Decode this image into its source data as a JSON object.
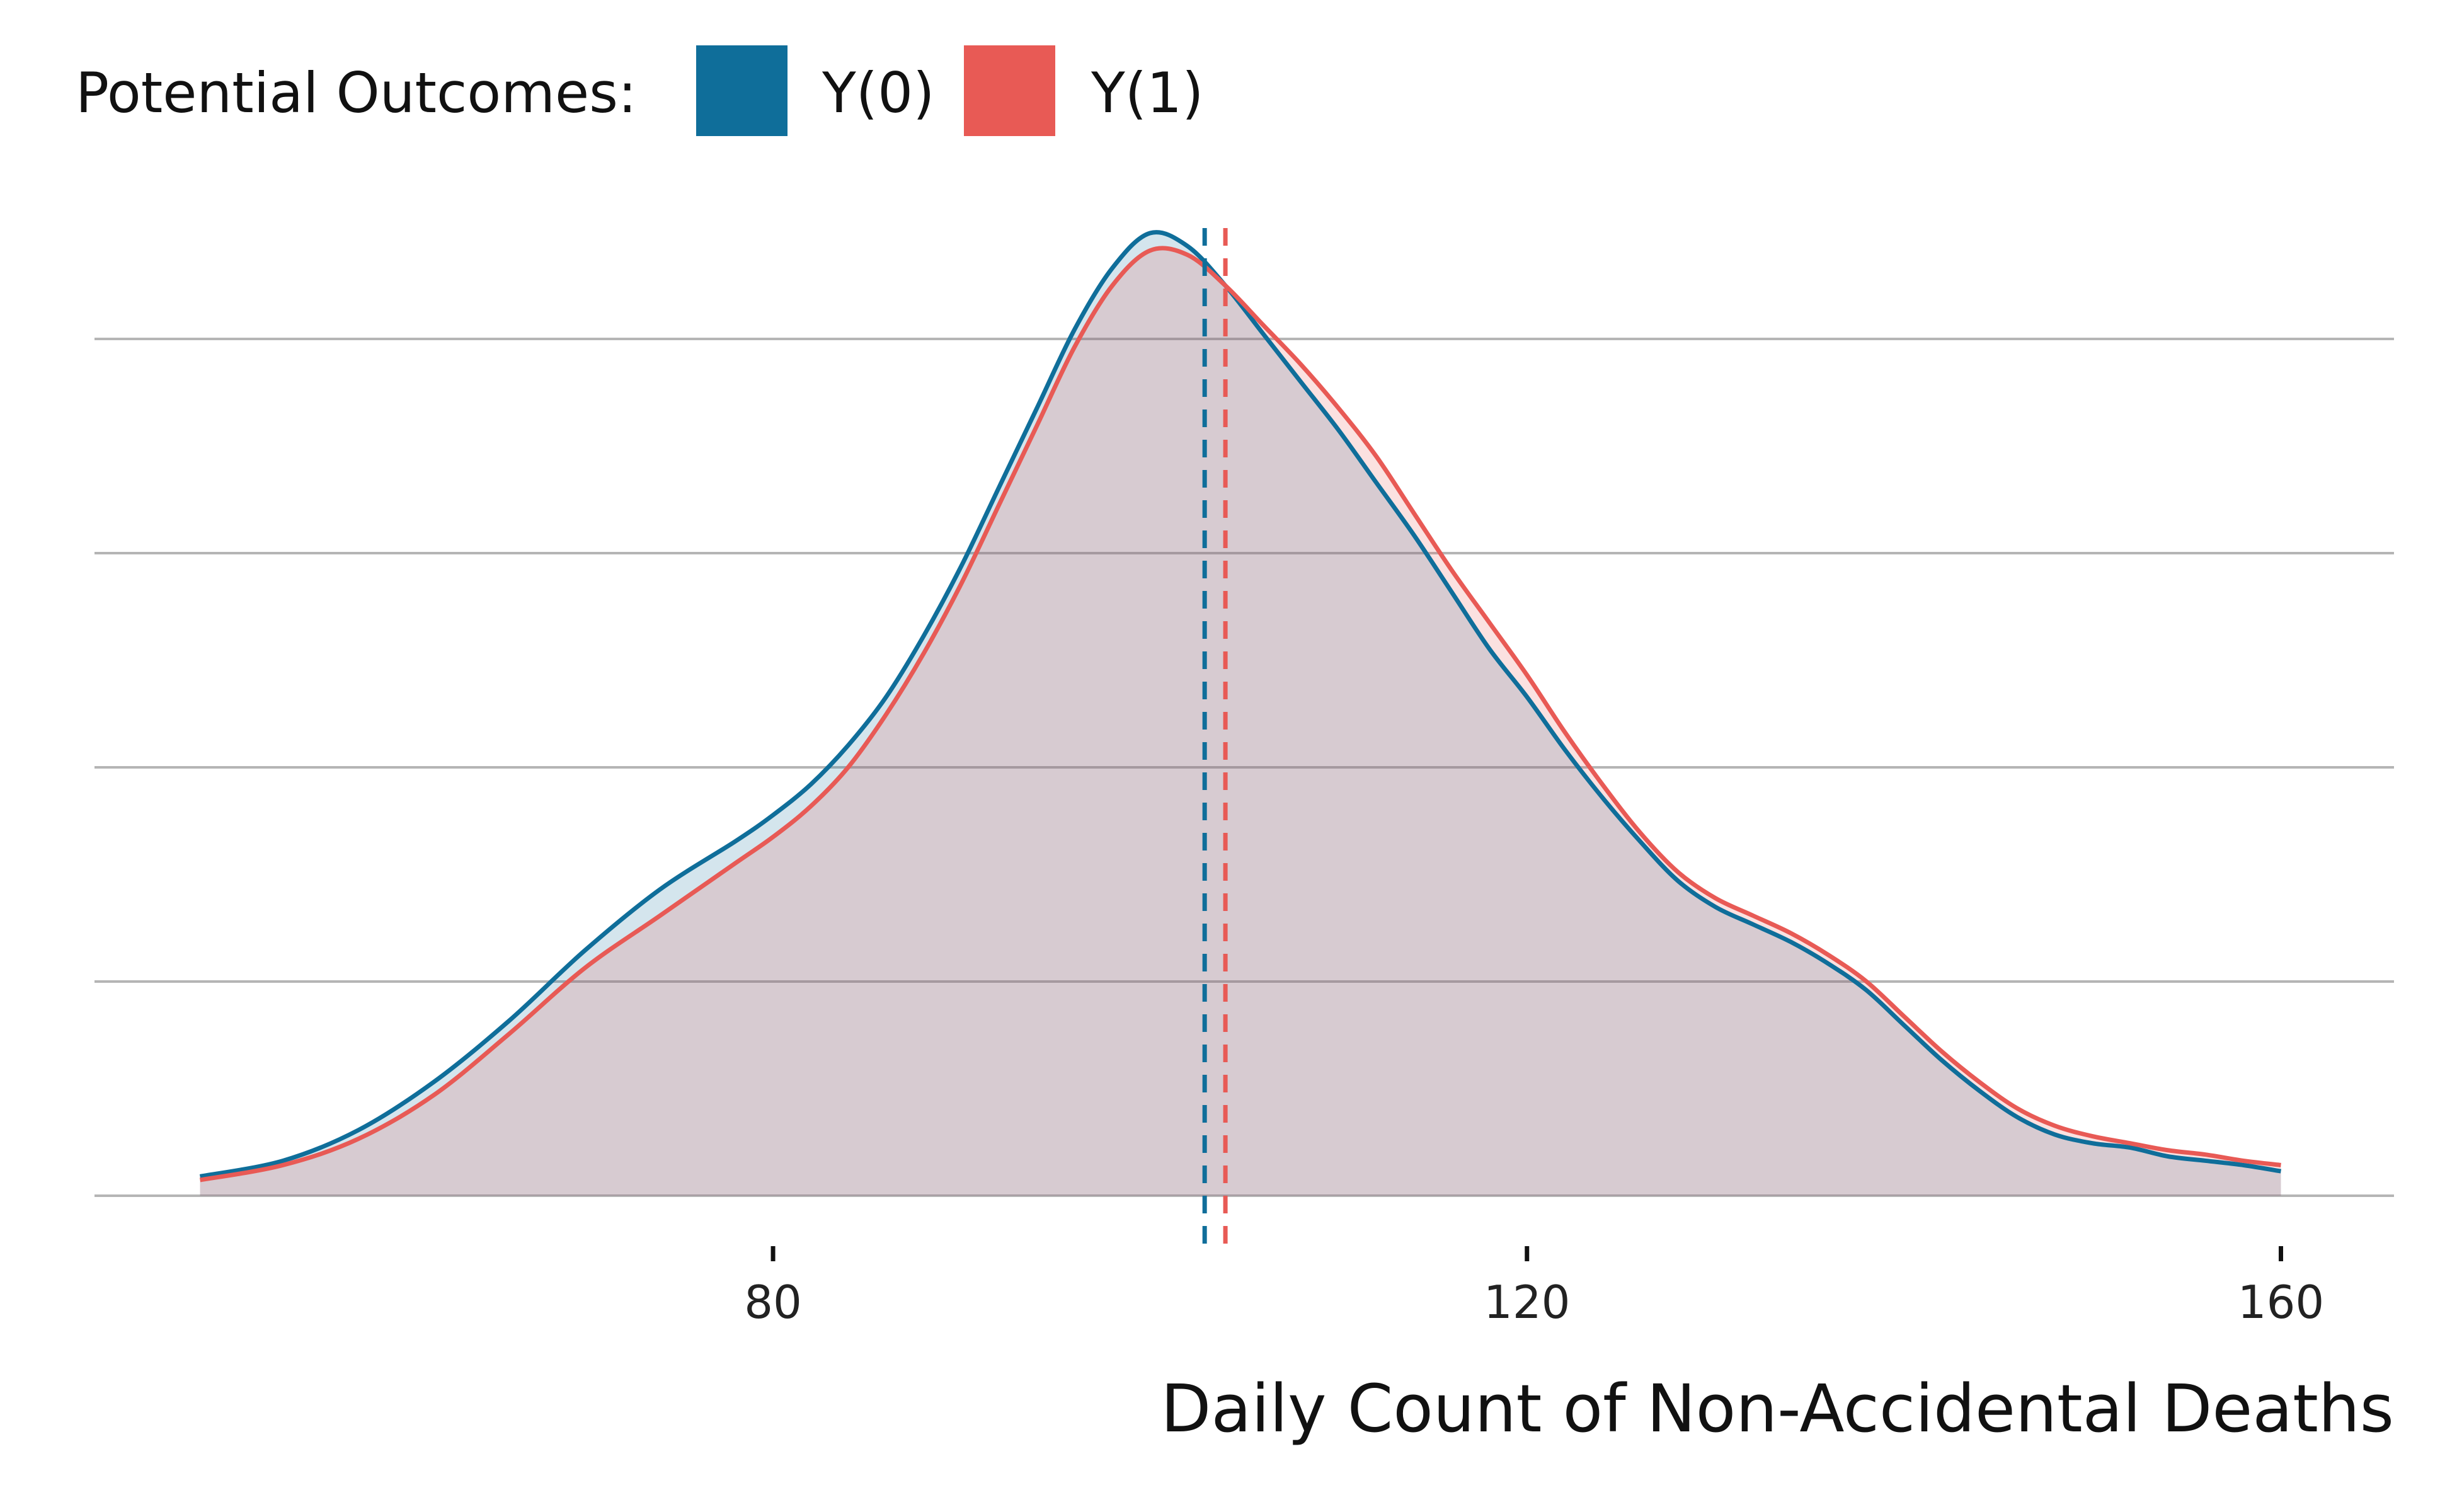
{
  "chart_data": {
    "type": "area",
    "subtype": "density",
    "legend": {
      "title": "Potential Outcomes:",
      "position": "top-left",
      "entries": [
        {
          "label": "Y(0)",
          "color": "#0f6e9a"
        },
        {
          "label": "Y(1)",
          "color": "#e85a55"
        }
      ]
    },
    "xlabel": "Daily Count of Non-Accidental Deaths",
    "ylabel": "",
    "xlim": [
      44,
      166
    ],
    "ylim": [
      0,
      1.1
    ],
    "x_ticks": [
      80,
      120,
      160
    ],
    "x_tick_labels": [
      "80",
      "120",
      "160"
    ],
    "y_ticks_shown": false,
    "grid": {
      "horizontal": true,
      "vertical": false
    },
    "series": [
      {
        "name": "Y(0)",
        "color": "#0f6e9a",
        "fill": "#0f6e9a",
        "fill_opacity": 0.18,
        "mean": 102.9,
        "x": [
          49.6,
          54,
          58,
          62,
          66,
          70,
          74,
          78,
          80,
          82,
          84,
          86,
          88,
          90,
          92,
          94,
          96,
          98,
          100,
          102,
          104,
          106,
          108,
          110,
          112,
          114,
          116,
          118,
          120,
          122,
          124,
          126,
          128,
          130,
          132,
          134,
          136,
          138,
          140,
          142,
          144,
          146,
          148,
          150,
          152,
          154,
          156,
          158,
          160
        ],
        "y": [
          0.022,
          0.04,
          0.075,
          0.13,
          0.2,
          0.28,
          0.35,
          0.405,
          0.435,
          0.47,
          0.515,
          0.57,
          0.64,
          0.72,
          0.81,
          0.9,
          0.99,
          1.06,
          1.1,
          1.085,
          1.04,
          0.985,
          0.93,
          0.875,
          0.815,
          0.755,
          0.69,
          0.625,
          0.57,
          0.51,
          0.455,
          0.405,
          0.36,
          0.33,
          0.31,
          0.29,
          0.265,
          0.235,
          0.195,
          0.155,
          0.12,
          0.09,
          0.07,
          0.06,
          0.055,
          0.045,
          0.04,
          0.035,
          0.028
        ]
      },
      {
        "name": "Y(1)",
        "color": "#e85a55",
        "fill": "#e85a55",
        "fill_opacity": 0.18,
        "mean": 104.0,
        "x": [
          49.6,
          54,
          58,
          62,
          66,
          70,
          74,
          78,
          80,
          82,
          84,
          86,
          88,
          90,
          92,
          94,
          96,
          98,
          100,
          102,
          104,
          106,
          108,
          110,
          112,
          114,
          116,
          118,
          120,
          122,
          124,
          126,
          128,
          130,
          132,
          134,
          136,
          138,
          140,
          142,
          144,
          146,
          148,
          150,
          152,
          154,
          156,
          158,
          160
        ],
        "y": [
          0.018,
          0.035,
          0.065,
          0.115,
          0.185,
          0.26,
          0.32,
          0.38,
          0.41,
          0.445,
          0.49,
          0.55,
          0.62,
          0.7,
          0.79,
          0.88,
          0.97,
          1.04,
          1.08,
          1.075,
          1.04,
          0.995,
          0.95,
          0.9,
          0.845,
          0.78,
          0.715,
          0.655,
          0.595,
          0.53,
          0.47,
          0.415,
          0.37,
          0.34,
          0.32,
          0.3,
          0.275,
          0.245,
          0.205,
          0.165,
          0.13,
          0.1,
          0.08,
          0.068,
          0.06,
          0.052,
          0.047,
          0.04,
          0.035
        ]
      }
    ]
  }
}
